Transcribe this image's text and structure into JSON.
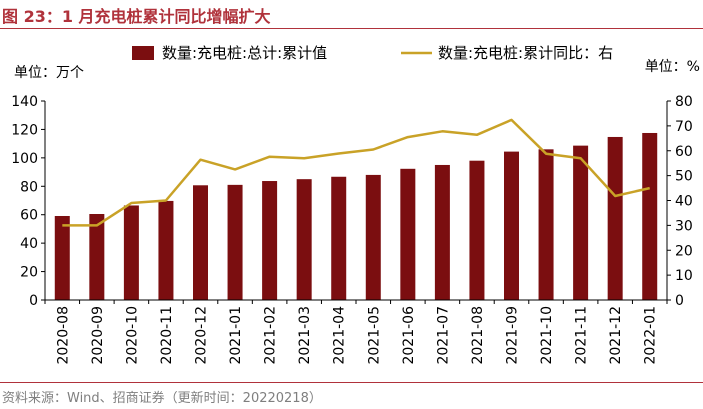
{
  "figure": {
    "title": "图 23：1 月充电桩累计同比增幅扩大",
    "source": "资料来源：Wind、招商证券（更新时间：20220218）",
    "left_unit": "单位：万个",
    "right_unit": "单位：%"
  },
  "colors": {
    "bar": "#7B0E10",
    "line": "#C9A227",
    "accent": "#B0323B",
    "axis": "#000000"
  },
  "chart_data": {
    "type": "bar",
    "categories": [
      "2020-08",
      "2020-09",
      "2020-10",
      "2020-11",
      "2020-12",
      "2021-01",
      "2021-02",
      "2021-03",
      "2021-04",
      "2021-05",
      "2021-06",
      "2021-07",
      "2021-08",
      "2021-09",
      "2021-10",
      "2021-11",
      "2021-12",
      "2022-01"
    ],
    "series": [
      {
        "name": "数量:充电桩:总计:累计值",
        "type": "bar",
        "axis": "left",
        "values": [
          59.1,
          60.5,
          66.5,
          69.7,
          80.7,
          81.0,
          83.7,
          85.0,
          86.7,
          88.0,
          92.3,
          95.0,
          98.0,
          104.4,
          106.0,
          108.6,
          114.7,
          117.5
        ]
      },
      {
        "name": "数量:充电桩:累计同比：右",
        "type": "line",
        "axis": "right",
        "values": [
          30.0,
          30.0,
          39.0,
          40.0,
          56.4,
          52.5,
          57.6,
          57.0,
          58.9,
          60.5,
          65.5,
          67.8,
          66.4,
          72.4,
          58.8,
          57.0,
          41.8,
          45.0
        ]
      }
    ],
    "ylim_left": [
      0,
      140
    ],
    "yticks_left": [
      0,
      20,
      40,
      60,
      80,
      100,
      120,
      140
    ],
    "ylim_right": [
      0,
      80
    ],
    "yticks_right": [
      0,
      10,
      20,
      30,
      40,
      50,
      60,
      70,
      80
    ],
    "legend_position": "top",
    "grid": false
  }
}
